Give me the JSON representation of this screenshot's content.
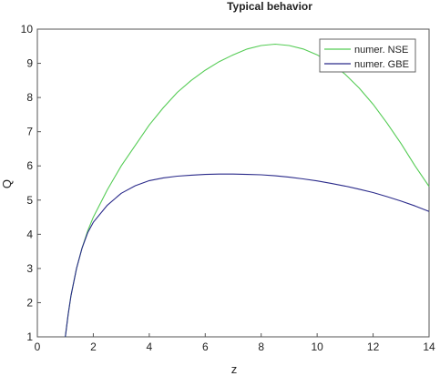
{
  "chart_data": {
    "type": "line",
    "title": "Typical behavior",
    "xlabel": "z",
    "ylabel": "Q",
    "xlim": [
      0,
      14
    ],
    "ylim": [
      1,
      10
    ],
    "xticks": [
      0,
      2,
      4,
      6,
      8,
      10,
      12,
      14
    ],
    "yticks": [
      1,
      2,
      3,
      4,
      5,
      6,
      7,
      8,
      9,
      10
    ],
    "grid": false,
    "legend_position": "top-right",
    "series": [
      {
        "name": "numer. NSE",
        "color": "#55cc55",
        "x": [
          1.0,
          1.1,
          1.2,
          1.4,
          1.6,
          1.8,
          2.0,
          2.5,
          3.0,
          3.5,
          4.0,
          4.5,
          5.0,
          5.5,
          6.0,
          6.5,
          7.0,
          7.5,
          8.0,
          8.5,
          9.0,
          9.5,
          10.0,
          10.5,
          11.0,
          11.5,
          12.0,
          12.5,
          13.0,
          13.5,
          14.0
        ],
        "y": [
          1.0,
          1.65,
          2.2,
          3.0,
          3.6,
          4.1,
          4.5,
          5.3,
          6.0,
          6.6,
          7.2,
          7.7,
          8.15,
          8.5,
          8.8,
          9.05,
          9.25,
          9.42,
          9.52,
          9.56,
          9.52,
          9.42,
          9.25,
          9.0,
          8.68,
          8.28,
          7.8,
          7.25,
          6.65,
          6.0,
          5.4
        ]
      },
      {
        "name": "numer. GBE",
        "color": "#2a2a8a",
        "x": [
          1.0,
          1.1,
          1.2,
          1.4,
          1.6,
          1.8,
          2.0,
          2.5,
          3.0,
          3.5,
          4.0,
          4.5,
          5.0,
          5.5,
          6.0,
          6.5,
          7.0,
          7.5,
          8.0,
          8.5,
          9.0,
          9.5,
          10.0,
          10.5,
          11.0,
          11.5,
          12.0,
          12.5,
          13.0,
          13.5,
          14.0
        ],
        "y": [
          1.0,
          1.65,
          2.2,
          3.0,
          3.6,
          4.05,
          4.35,
          4.85,
          5.2,
          5.42,
          5.57,
          5.65,
          5.7,
          5.73,
          5.75,
          5.76,
          5.76,
          5.75,
          5.74,
          5.71,
          5.67,
          5.62,
          5.56,
          5.49,
          5.41,
          5.32,
          5.22,
          5.1,
          4.97,
          4.83,
          4.67
        ]
      }
    ]
  }
}
